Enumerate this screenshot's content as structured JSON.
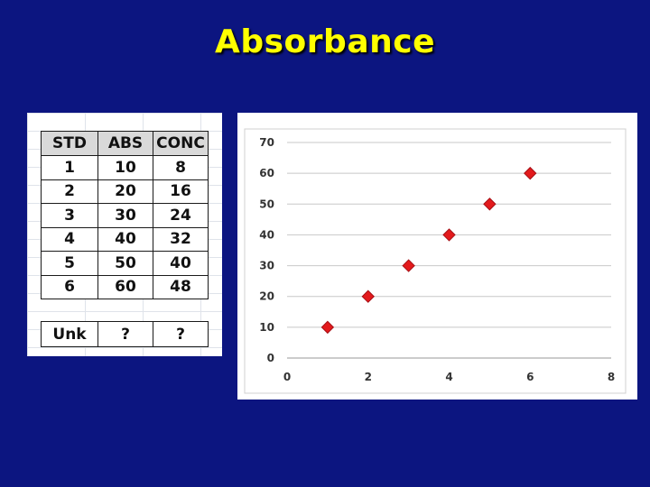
{
  "title": "Absorbance",
  "table": {
    "headers": [
      "STD",
      "ABS",
      "CONC"
    ],
    "rows": [
      [
        "1",
        "10",
        "8"
      ],
      [
        "2",
        "20",
        "16"
      ],
      [
        "3",
        "30",
        "24"
      ],
      [
        "4",
        "40",
        "32"
      ],
      [
        "5",
        "50",
        "40"
      ],
      [
        "6",
        "60",
        "48"
      ]
    ],
    "unknown": [
      "Unk",
      "?",
      "?"
    ]
  },
  "chart_data": {
    "type": "scatter",
    "title": "",
    "xlabel": "",
    "ylabel": "",
    "xlim": [
      0,
      8
    ],
    "ylim": [
      0,
      70
    ],
    "x_ticks": [
      0,
      2,
      4,
      6,
      8
    ],
    "y_ticks": [
      0,
      10,
      20,
      30,
      40,
      50,
      60,
      70
    ],
    "grid": "horizontal",
    "marker_color": "#e31a1c",
    "points": [
      {
        "x": 1,
        "y": 10
      },
      {
        "x": 2,
        "y": 20
      },
      {
        "x": 3,
        "y": 30
      },
      {
        "x": 4,
        "y": 40
      },
      {
        "x": 5,
        "y": 50
      },
      {
        "x": 6,
        "y": 60
      }
    ]
  }
}
